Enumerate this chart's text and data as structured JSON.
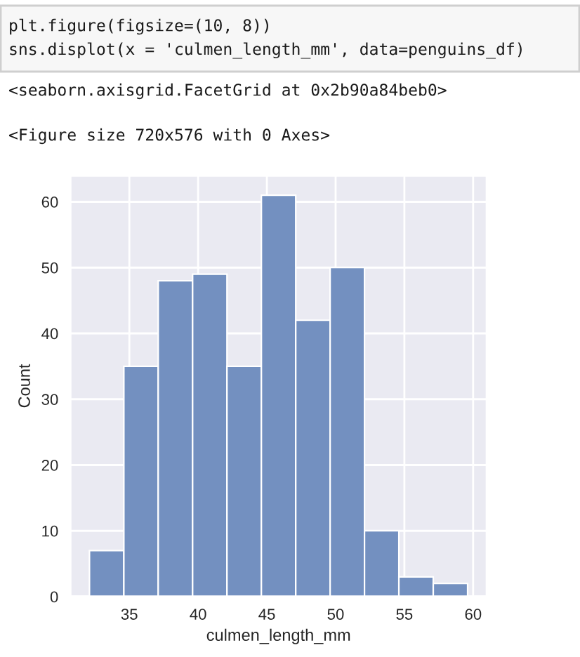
{
  "chart_data": {
    "type": "histogram",
    "xlabel": "culmen_length_mm",
    "ylabel": "Count",
    "bins": [
      32.1,
      34.6,
      37.1,
      39.6,
      42.1,
      44.6,
      47.1,
      49.6,
      52.1,
      54.6,
      57.1,
      59.6
    ],
    "values": [
      7,
      35,
      48,
      49,
      35,
      61,
      42,
      50,
      10,
      3,
      2
    ],
    "color": "#7390c0",
    "xlim": [
      30.7,
      61.0
    ],
    "ylim": [
      0,
      64
    ],
    "xticks": [
      35,
      40,
      45,
      50,
      55,
      60
    ],
    "yticks": [
      0,
      10,
      20,
      30,
      40,
      50,
      60
    ],
    "grid": true,
    "annotations": [
      "plt.figure(figsize=(10, 8))",
      "sns.displot(x = 'culmen_length_mm', data=penguins_df)",
      "<seaborn.axisgrid.FacetGrid at 0x2b90a84beb0>",
      "<Figure size 720x576 with 0 Axes>"
    ]
  }
}
